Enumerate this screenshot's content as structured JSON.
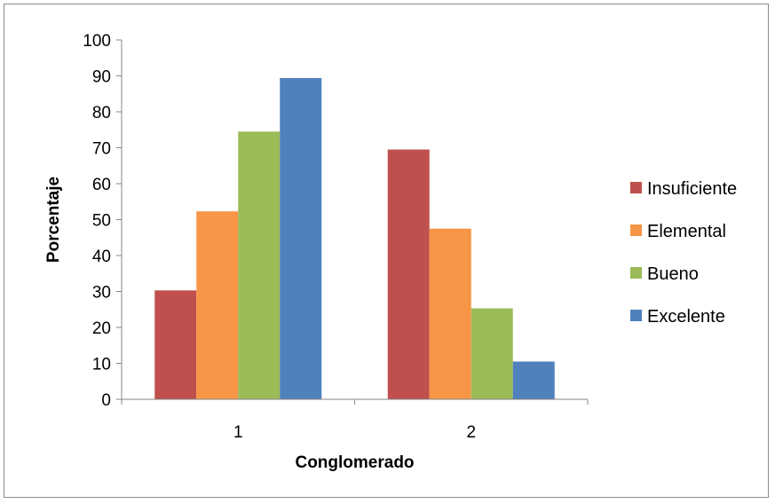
{
  "chart_data": {
    "type": "bar",
    "categories": [
      "1",
      "2"
    ],
    "series": [
      {
        "name": "Insuficiente",
        "color": "#C0504D",
        "values": [
          30.3,
          69.5
        ]
      },
      {
        "name": "Elemental",
        "color": "#F79646",
        "values": [
          52.3,
          47.5
        ]
      },
      {
        "name": "Bueno",
        "color": "#9BBB59",
        "values": [
          74.5,
          25.3
        ]
      },
      {
        "name": "Excelente",
        "color": "#4F81BD",
        "values": [
          89.4,
          10.5
        ]
      }
    ],
    "xlabel": "Conglomerado",
    "ylabel": "Porcentaje",
    "ylim": [
      0,
      100
    ],
    "yticks": [
      "0",
      "10",
      "20",
      "30",
      "40",
      "50",
      "60",
      "70",
      "80",
      "90",
      "100"
    ],
    "grid": false,
    "legend_position": "right"
  }
}
